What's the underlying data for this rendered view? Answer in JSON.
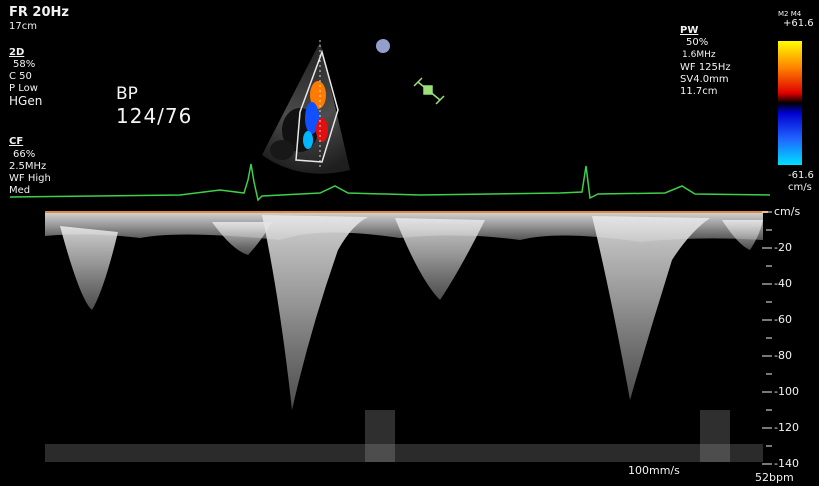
{
  "top_left": {
    "frame_rate": "FR 20Hz",
    "depth": "17cm",
    "mode_2d": {
      "title": "2D",
      "gain": "58%",
      "c": "C 50",
      "p": "P Low",
      "freq": "HGen"
    },
    "mode_cf": {
      "title": "CF",
      "gain": "66%",
      "freq": "2.5MHz",
      "wf": "WF High",
      "med": "Med"
    }
  },
  "bp": {
    "label": "BP",
    "value": "124/76"
  },
  "pw": {
    "title": "PW",
    "gain": "50%",
    "freq": "1.6MHz",
    "wf": "WF 125Hz",
    "sv": "SV4.0mm",
    "depth": "11.7cm"
  },
  "colorbar": {
    "header": "M2 M4",
    "top_value": "+61.6",
    "bottom_value": "-61.6",
    "unit": "cm/s",
    "colors": {
      "top": "#ffff00",
      "mid_top": "#e00000",
      "mid_bottom": "#0000d0",
      "bottom": "#00e0ff"
    }
  },
  "velocity_scale": {
    "unit": "cm/s",
    "ticks": [
      "-20",
      "-40",
      "-60",
      "-80",
      "-100",
      "-120",
      "-140"
    ]
  },
  "footer": {
    "sweep": "100mm/s",
    "heart_rate": "52bpm"
  },
  "colors": {
    "ecg": "#3fcf4a",
    "baseline": "#e08a3c",
    "doppler": "#d8d8d8"
  }
}
